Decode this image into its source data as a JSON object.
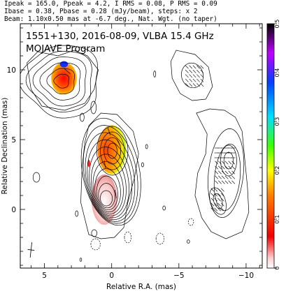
{
  "header": {
    "line1": "Ipeak = 165.0, Ppeak = 4.2, I RMS = 0.08, P RMS = 0.09",
    "line2": "Ibase = 0.38, Pbase = 0.28 (mJy/beam), steps: x 2",
    "line3": "Beam: 1.10x0.50 mas at -6.7 deg., Nat. Wgt. (no taper)"
  },
  "chart_data": {
    "type": "contour",
    "title": "1551+130, 2016-08-09, VLBA 15.4 GHz",
    "subtitle": "MOJAVE Program",
    "xlabel": "Relative R.A. (mas)",
    "ylabel": "Relative Declination (mas)",
    "xlim": [
      6.8,
      -11.2
    ],
    "ylim": [
      -4.2,
      13.3
    ],
    "x_ticks": [
      5,
      0,
      -5,
      -10
    ],
    "y_ticks": [
      0,
      5,
      10
    ],
    "x_tick_labels": [
      "5",
      "0",
      "−5",
      "−10"
    ],
    "y_tick_labels": [
      "0",
      "5",
      "10"
    ],
    "colorbar": {
      "min": 0,
      "max": 0.5,
      "ticks": [
        0,
        0.1,
        0.2,
        0.3,
        0.4,
        0.5
      ],
      "tick_labels": [
        "0",
        "0.1",
        "0.2",
        "0.3",
        "0.4",
        "0.5"
      ]
    },
    "colors": {
      "contour": "#000000",
      "frame": "#000000",
      "background": "#ffffff"
    }
  }
}
